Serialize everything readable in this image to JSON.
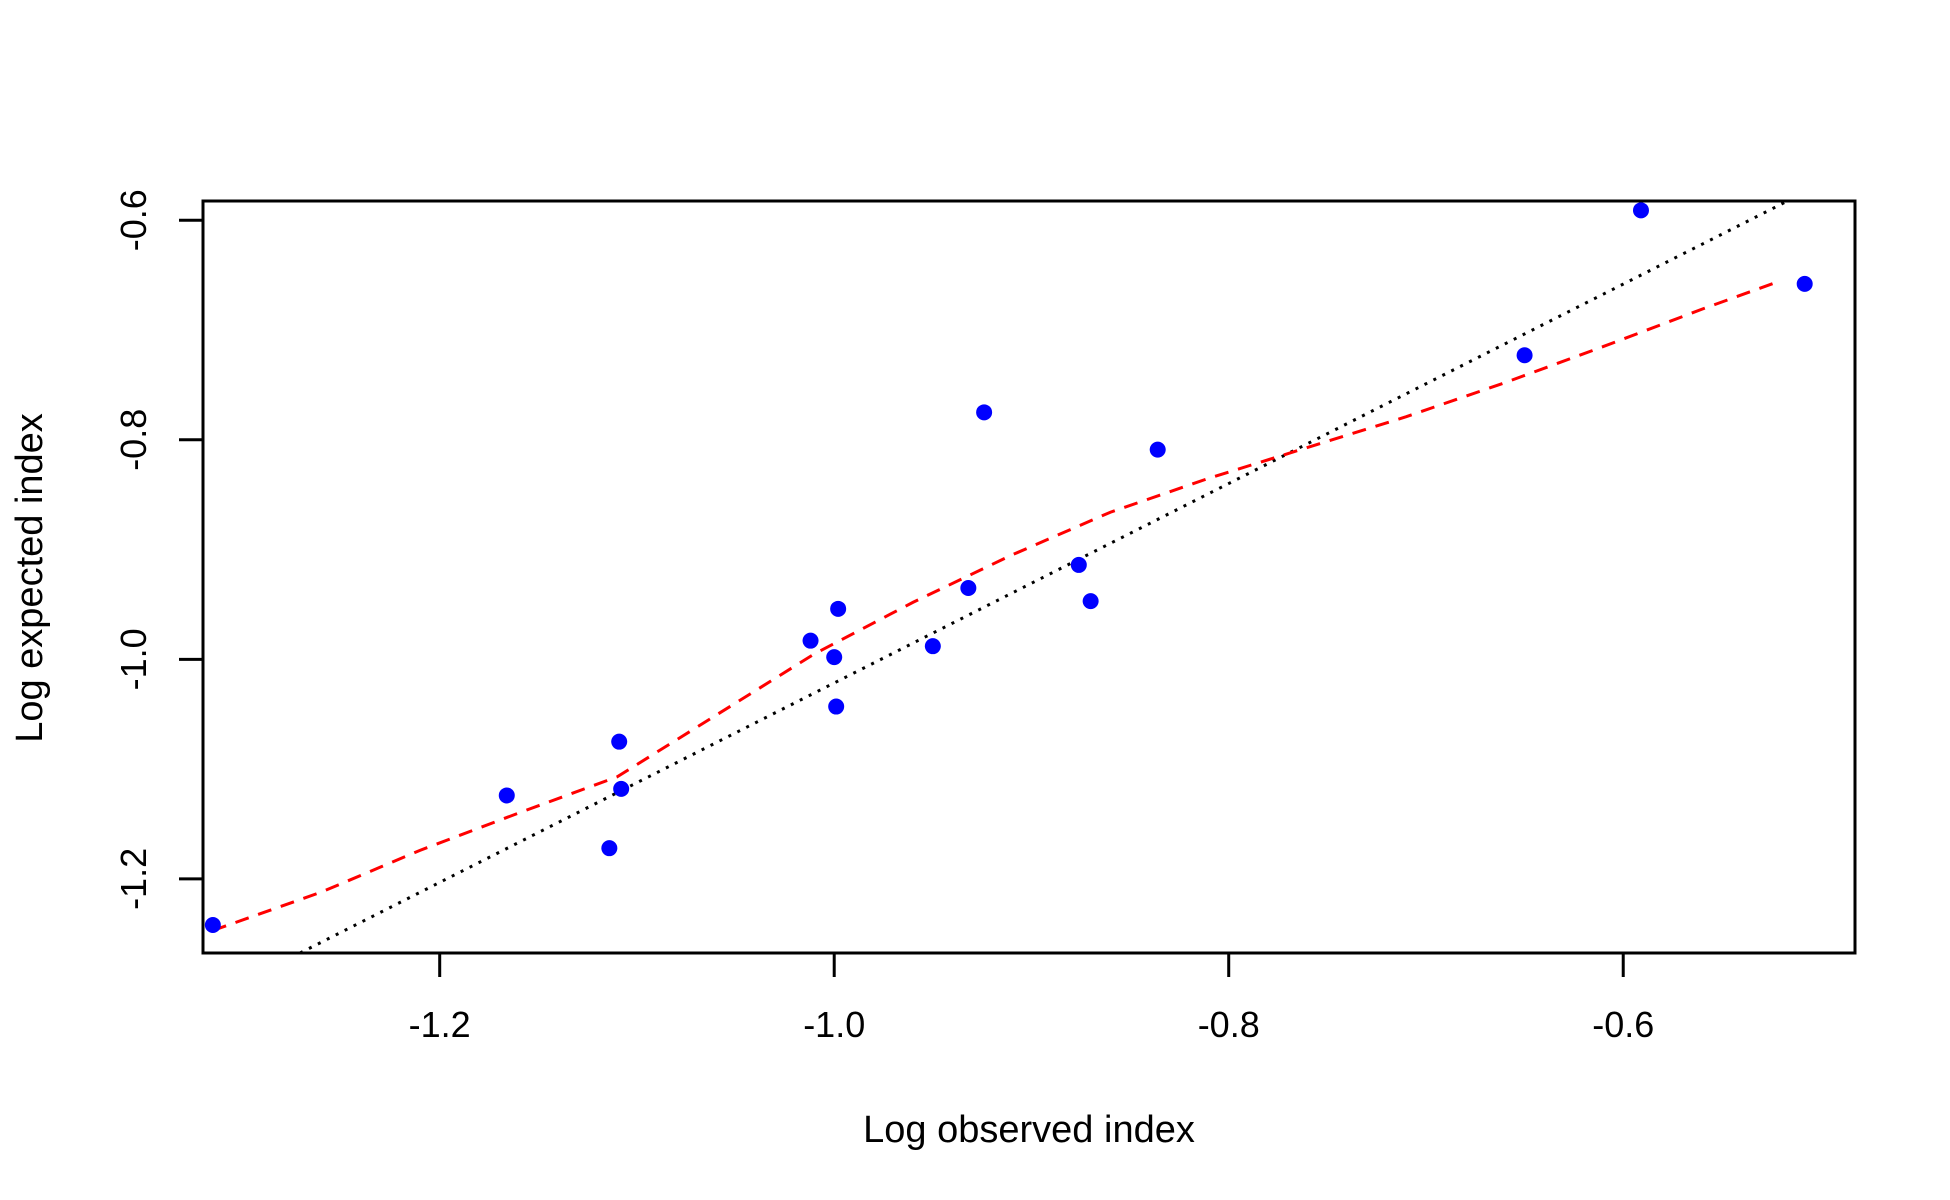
{
  "chart_data": {
    "type": "scatter",
    "title": "",
    "xlabel": "Log observed index",
    "ylabel": "Log expected index",
    "xlim": [
      -1.32,
      -0.4825
    ],
    "ylim": [
      -1.2675,
      -0.5825
    ],
    "xticks": [
      -1.2,
      -1.0,
      -0.8,
      -0.6
    ],
    "xtick_labels": [
      "-1.2",
      "-1.0",
      "-0.8",
      "-0.6"
    ],
    "yticks": [
      -1.2,
      -1.0,
      -0.8,
      -0.6
    ],
    "ytick_labels": [
      "-1.2",
      "-1.0",
      "-0.8",
      "-0.6"
    ],
    "grid": false,
    "legend": "none",
    "series": [
      {
        "type": "scatter",
        "color": "#0000ff",
        "x": [
          -1.315,
          -1.166,
          -1.109,
          -1.108,
          -1.114,
          -1.012,
          -1.0,
          -0.998,
          -0.999,
          -0.95,
          -0.932,
          -0.924,
          -0.876,
          -0.87,
          -0.836,
          -0.65,
          -0.591,
          -0.508
        ],
        "y": [
          -1.242,
          -1.124,
          -1.075,
          -1.118,
          -1.172,
          -0.983,
          -0.998,
          -0.954,
          -1.043,
          -0.988,
          -0.935,
          -0.775,
          -0.914,
          -0.947,
          -0.809,
          -0.723,
          -0.591,
          -0.658
        ]
      },
      {
        "type": "line",
        "style": "dotted",
        "color": "#000000",
        "x": [
          -1.2708,
          -0.5167
        ],
        "y": [
          -1.2675,
          -0.5825
        ]
      },
      {
        "type": "line",
        "style": "dashed",
        "color": "#ff0000",
        "x": [
          -1.315,
          -1.26,
          -1.21,
          -1.16,
          -1.11,
          -1.06,
          -1.01,
          -0.96,
          -0.91,
          -0.86,
          -0.81,
          -0.76,
          -0.71,
          -0.66,
          -0.61,
          -0.56,
          -0.52
        ],
        "y": [
          -1.247,
          -1.212,
          -1.174,
          -1.14,
          -1.107,
          -1.051,
          -0.995,
          -0.948,
          -0.905,
          -0.866,
          -0.835,
          -0.807,
          -0.779,
          -0.748,
          -0.715,
          -0.681,
          -0.655
        ]
      }
    ]
  }
}
